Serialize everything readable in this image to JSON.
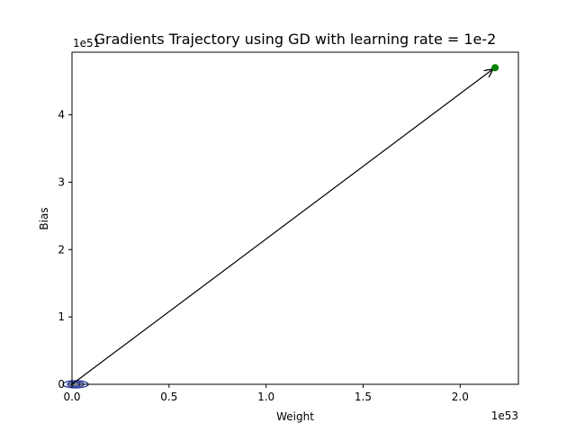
{
  "chart_data": {
    "type": "line",
    "title": "Gradients Trajectory using GD with learning rate = 1e-2",
    "xlabel": "Weight",
    "ylabel": "Bias",
    "x_offset_label": "1e53",
    "y_offset_label": "1e51",
    "xlim": [
      0,
      2.3
    ],
    "ylim": [
      0,
      4.93
    ],
    "x_ticks": [
      0,
      0.5,
      1.0,
      1.5,
      2.0
    ],
    "x_tick_labels": [
      "0.0",
      "0.5",
      "1.0",
      "1.5",
      "2.0"
    ],
    "y_ticks": [
      0,
      1,
      2,
      3,
      4
    ],
    "y_tick_labels": [
      "0",
      "1",
      "2",
      "3",
      "4"
    ],
    "grid": false,
    "arrow": {
      "from": [
        0.0,
        0.0
      ],
      "to": [
        2.18,
        4.7
      ]
    },
    "end_point": {
      "x": 2.18,
      "y": 4.7,
      "color": "#008000"
    },
    "contour_color": "#3b4ba0",
    "arrow_color": "#000000"
  }
}
